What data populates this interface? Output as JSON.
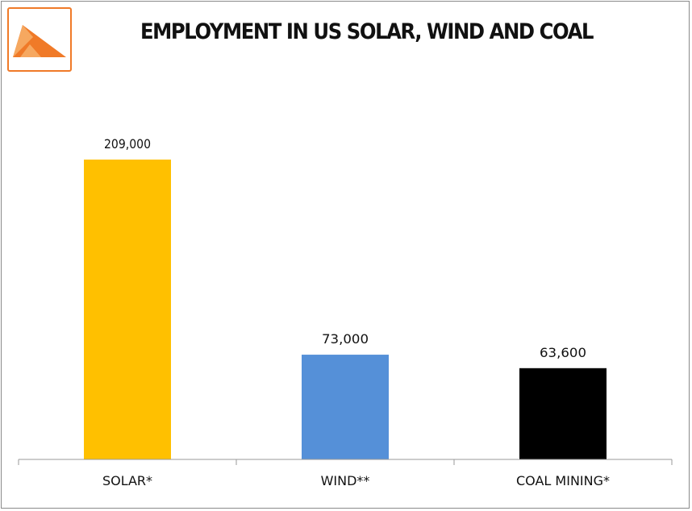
{
  "logo": {
    "icon": "triangle-logo-icon",
    "accent": "#f07a28",
    "accent_light": "#f6a860"
  },
  "title": "EMPLOYMENT IN US SOLAR, WIND AND COAL",
  "chart_data": {
    "type": "bar",
    "title": "EMPLOYMENT IN US SOLAR, WIND AND COAL",
    "categories": [
      "SOLAR*",
      "WIND**",
      "COAL MINING*"
    ],
    "values": [
      209000,
      73000,
      63600
    ],
    "data_labels": [
      "209,000",
      "73,000",
      "63,600"
    ],
    "colors": [
      "#ffc000",
      "#5590d8",
      "#000000"
    ],
    "xlabel": "",
    "ylabel": "",
    "ylim": [
      0,
      250000
    ],
    "grid": false,
    "legend": "none"
  }
}
